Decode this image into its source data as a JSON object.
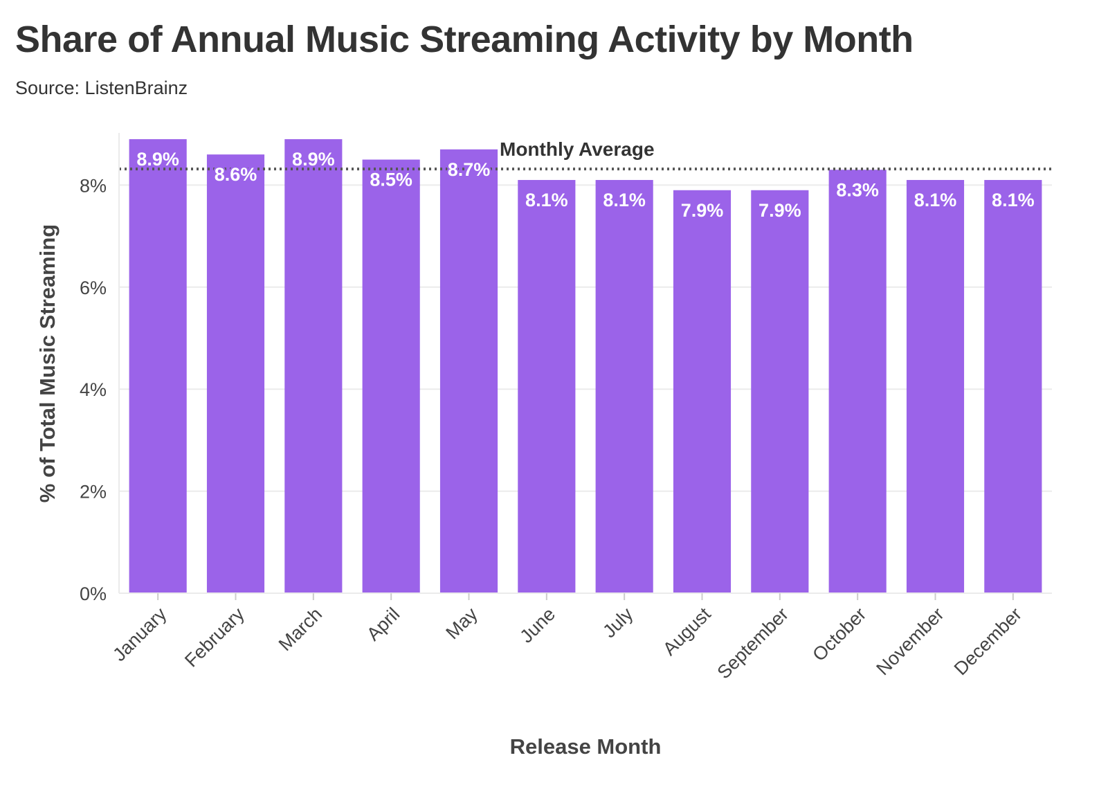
{
  "title": "Share of Annual Music Streaming Activity by Month",
  "subtitle": "Source: ListenBrainz",
  "colors": {
    "bar": "#9b63e9",
    "grid": "#ebebeb",
    "average_line": "#555555",
    "text": "#333333"
  },
  "chart_data": {
    "type": "bar",
    "categories": [
      "January",
      "February",
      "March",
      "April",
      "May",
      "June",
      "July",
      "August",
      "September",
      "October",
      "November",
      "December"
    ],
    "values": [
      8.9,
      8.6,
      8.9,
      8.5,
      8.7,
      8.1,
      8.1,
      7.9,
      7.9,
      8.3,
      8.1,
      8.1
    ],
    "data_labels": [
      "8.9%",
      "8.6%",
      "8.9%",
      "8.5%",
      "8.7%",
      "8.1%",
      "8.1%",
      "7.9%",
      "7.9%",
      "8.3%",
      "8.1%",
      "8.1%"
    ],
    "xlabel": "Release Month",
    "ylabel": "% of Total Music Streaming",
    "ylim": [
      0,
      9
    ],
    "yticks": [
      0,
      2,
      4,
      6,
      8
    ],
    "ytick_labels": [
      "0%",
      "2%",
      "4%",
      "6%",
      "8%"
    ],
    "grid": true,
    "reference_line": {
      "label": "Monthly Average",
      "value": 8.33,
      "style": "dotted"
    }
  }
}
